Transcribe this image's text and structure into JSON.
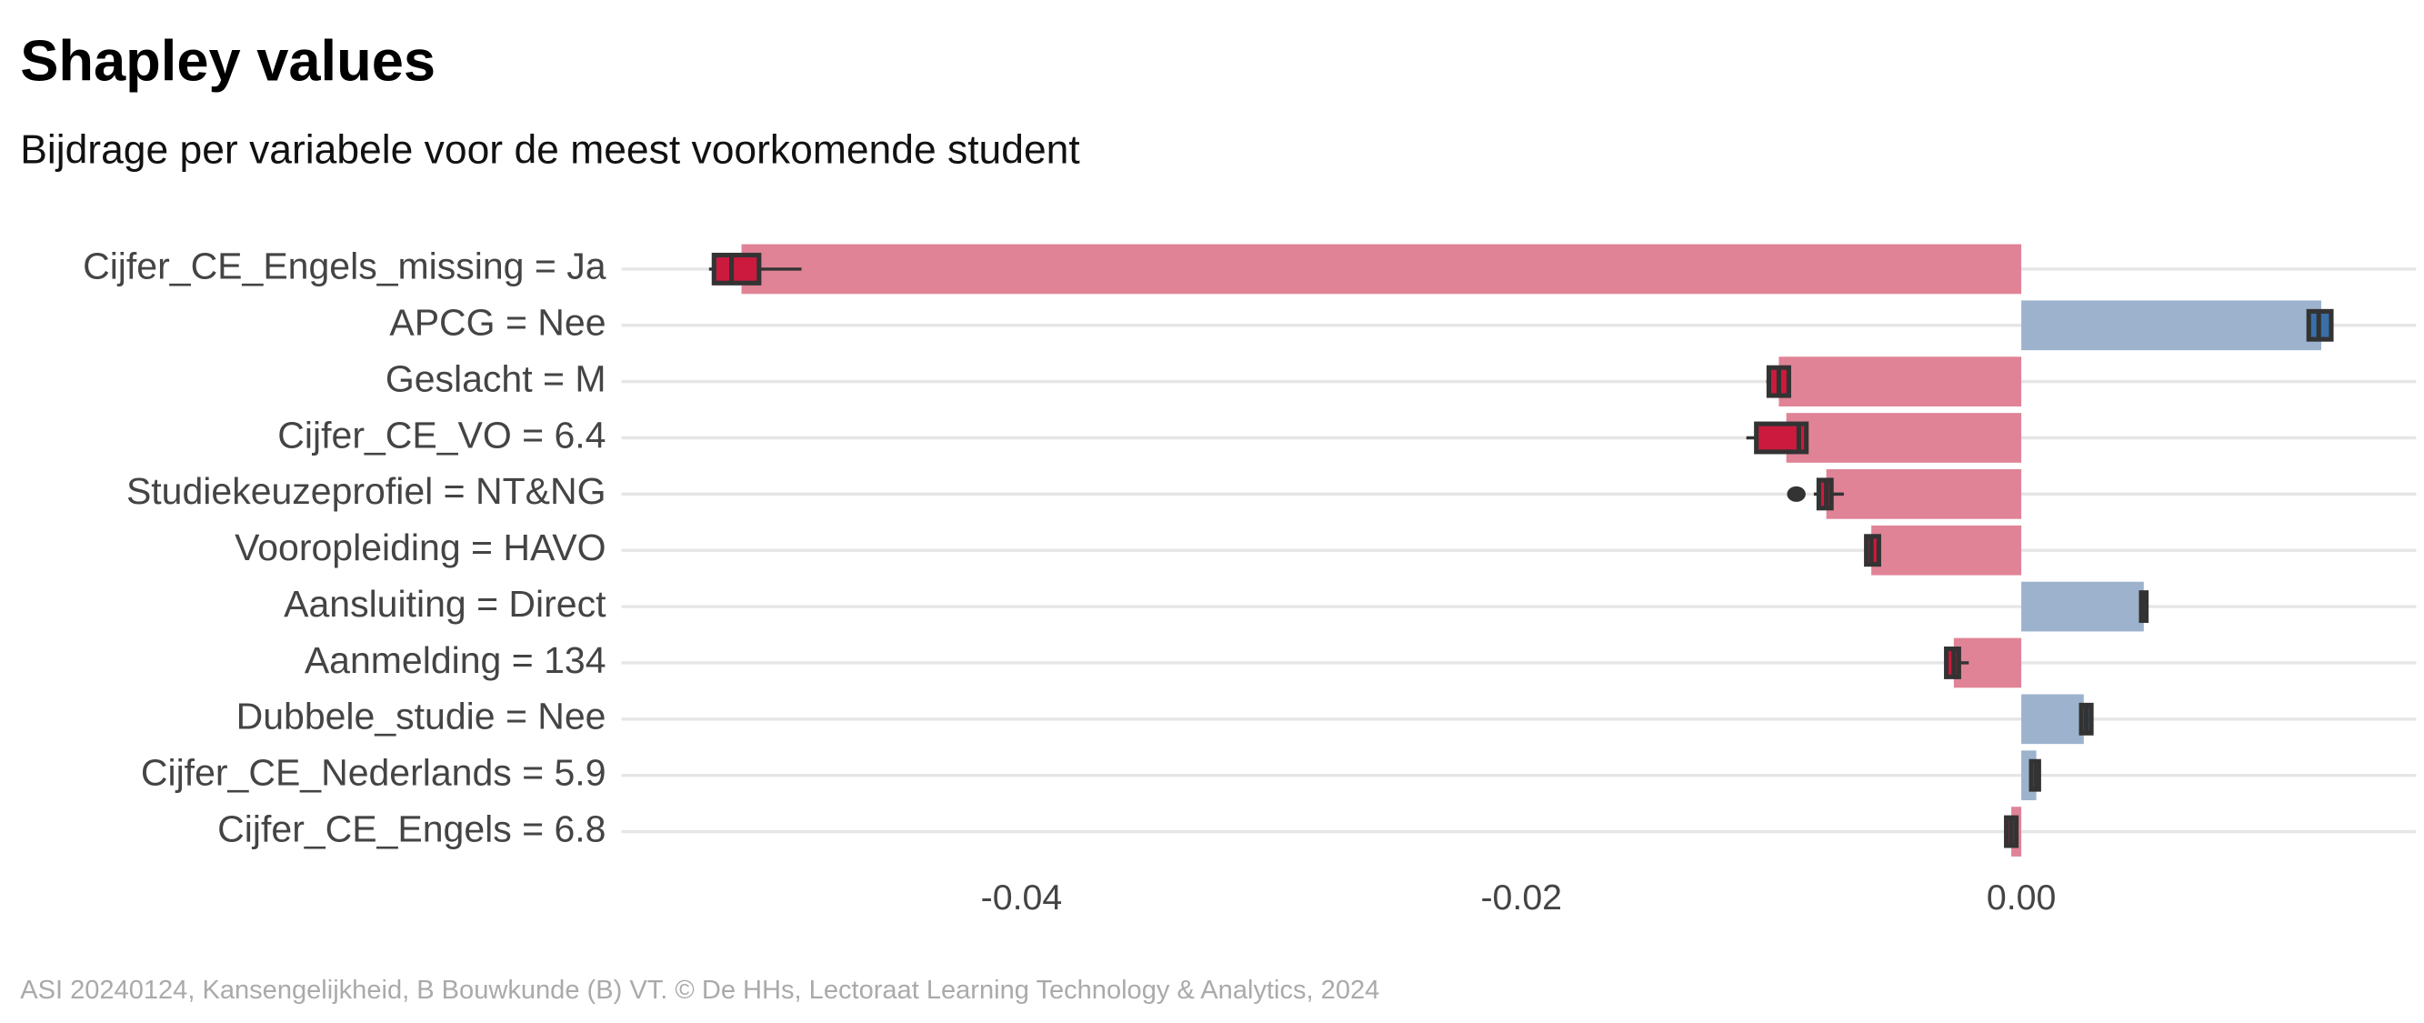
{
  "chart_data": {
    "type": "shapley-bar",
    "title": "Shapley values",
    "subtitle": "Bijdrage per variabele voor de meest voorkomende student",
    "caption": "ASI 20240124, Kansengelijkheid, B Bouwkunde (B) VT. © De HHs, Lectoraat Learning Technology & Analytics, 2024",
    "categories": [
      "Cijfer_CE_Engels_missing = Ja",
      "APCG = Nee",
      "Geslacht = M",
      "Cijfer_CE_VO = 6.4",
      "Studiekeuzeprofiel = NT&NG",
      "Vooropleiding = HAVO",
      "Aansluiting = Direct",
      "Aanmelding = 134",
      "Dubbele_studie = Nee",
      "Cijfer_CE_Nederlands = 5.9",
      "Cijfer_CE_Engels = 6.8"
    ],
    "values": [
      -0.0512,
      0.012,
      -0.0097,
      -0.0094,
      -0.0078,
      -0.006,
      0.0049,
      -0.0027,
      0.0025,
      0.0006,
      -0.0004
    ],
    "boxes": [
      {
        "low": -0.0525,
        "q1": -0.0523,
        "median": -0.0516,
        "q3": -0.0505,
        "high": -0.0488,
        "outliers": []
      },
      {
        "low": 0.0115,
        "q1": 0.0115,
        "median": 0.0119,
        "q3": 0.0124,
        "high": 0.0124,
        "outliers": []
      },
      {
        "low": -0.0102,
        "q1": -0.0101,
        "median": -0.0097,
        "q3": -0.0093,
        "high": -0.0093,
        "outliers": []
      },
      {
        "low": -0.011,
        "q1": -0.0106,
        "median": -0.0089,
        "q3": -0.0086,
        "high": -0.0086,
        "outliers": []
      },
      {
        "low": -0.0083,
        "q1": -0.0081,
        "median": -0.0078,
        "q3": -0.0076,
        "high": -0.0071,
        "outliers": [
          -0.009
        ]
      },
      {
        "low": -0.0062,
        "q1": -0.0062,
        "median": -0.006,
        "q3": -0.0057,
        "high": -0.0057,
        "outliers": []
      },
      {
        "low": 0.0048,
        "q1": 0.0048,
        "median": 0.0049,
        "q3": 0.005,
        "high": 0.005,
        "outliers": []
      },
      {
        "low": -0.003,
        "q1": -0.003,
        "median": -0.0027,
        "q3": -0.0025,
        "high": -0.0021,
        "outliers": []
      },
      {
        "low": 0.0024,
        "q1": 0.0024,
        "median": 0.0026,
        "q3": 0.0028,
        "high": 0.0028,
        "outliers": []
      },
      {
        "low": 0.0004,
        "q1": 0.0004,
        "median": 0.0006,
        "q3": 0.0007,
        "high": 0.0007,
        "outliers": []
      },
      {
        "low": -0.0006,
        "q1": -0.0006,
        "median": -0.0004,
        "q3": -0.0002,
        "high": -0.0002,
        "outliers": []
      }
    ],
    "negative_color": "#e08396",
    "positive_color": "#9db3cd",
    "negative_box_color": "#cc1a3f",
    "positive_box_color": "#3a6fa8",
    "xlim": [
      -0.056,
      0.0158
    ],
    "xticks": [
      {
        "value": -0.04,
        "label": "-0.04"
      },
      {
        "value": -0.02,
        "label": "-0.02"
      },
      {
        "value": 0,
        "label": "0.00"
      }
    ],
    "grid": true
  }
}
